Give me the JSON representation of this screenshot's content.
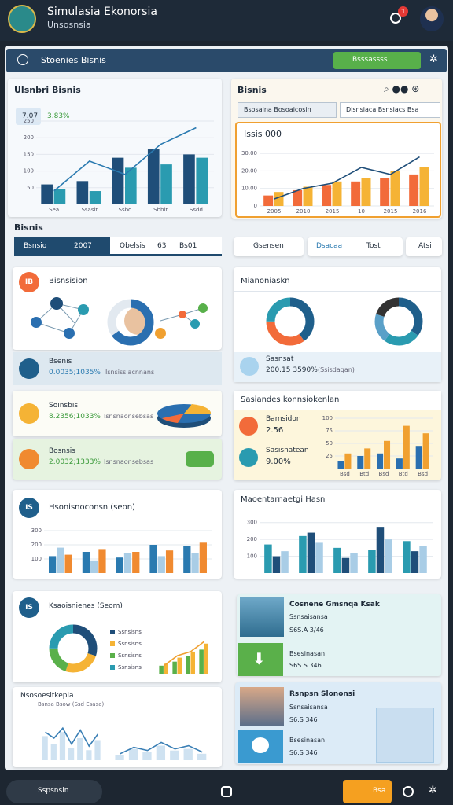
{
  "header": {
    "title": "Simulasia Ekonorsia",
    "subtitle": "Unsosnsia",
    "badge": "1"
  },
  "nav": {
    "title": "Stoenies Bisnis",
    "button": "Bsssassss"
  },
  "overview": {
    "title": "Ulsnbri Bisnis",
    "stat": "7.07",
    "stat_sub": "3.83%",
    "chart": {
      "ylim": [
        0,
        250
      ],
      "yticks": [
        50,
        100,
        150,
        200,
        250
      ],
      "categories": [
        "Sea",
        "Ssasit",
        "Ssbd",
        "Sbbit",
        "Ssdd"
      ],
      "series": [
        {
          "color": "#1f4e79",
          "values": [
            60,
            70,
            140,
            165,
            150
          ]
        },
        {
          "color": "#2a9bb0",
          "values": [
            45,
            40,
            110,
            120,
            140
          ]
        }
      ],
      "lines": [
        {
          "color": "#2a7ab0",
          "values": [
            40,
            130,
            90,
            180,
            230
          ]
        }
      ]
    }
  },
  "business": {
    "title": "Bisnis",
    "tabs": [
      "Bsosaina Bosoaicosin",
      "Dlsnsiaca Bsnsiacs Bsa"
    ],
    "card_title": "Issis 000",
    "chart": {
      "ylim": [
        0,
        35
      ],
      "yticks": [
        0,
        {
          "value": 10,
          "label": "10.00"
        },
        {
          "value": 20,
          "label": "20.00"
        },
        {
          "value": 30,
          "label": "30.00"
        }
      ],
      "categories": [
        "2005",
        "2010",
        "2015",
        "10",
        "2015",
        "2016"
      ],
      "series": [
        {
          "color": "#f26b3a",
          "values": [
            6,
            9,
            12,
            14,
            16,
            18
          ]
        },
        {
          "color": "#f5b335",
          "values": [
            8,
            11,
            14,
            16,
            20,
            22
          ]
        }
      ],
      "lines": [
        {
          "color": "#1f4e79",
          "values": [
            4,
            10,
            13,
            22,
            18,
            28
          ]
        }
      ]
    }
  },
  "section": "Bisnis",
  "tabs_left": [
    [
      "Bsnsio",
      "2007"
    ],
    [
      "Obelsis",
      "63",
      "Bs01"
    ]
  ],
  "tabs_right": [
    [
      "Gsensen"
    ],
    [
      "Dsacaa",
      "Tost"
    ],
    [
      "Atsi"
    ]
  ],
  "network": {
    "title": "Bisnsision",
    "icon": "IB",
    "label": "Bsenis",
    "value": "0.0035;1035%",
    "note": "Isnsissiacnnans",
    "ring": {
      "values": [
        65,
        35
      ],
      "colors": [
        "#2a6fb0",
        "#e2e9f0"
      ]
    }
  },
  "mix": {
    "title": "Mianoniaskn",
    "label": "Sasnsat",
    "value": "200.15 3590%",
    "note": "(Ssisdaqan)",
    "donuts": [
      {
        "values": [
          40,
          35,
          25
        ],
        "colors": [
          "#1f5f8b",
          "#f26b3a",
          "#2a9bb0"
        ]
      },
      {
        "values": [
          35,
          25,
          20,
          20
        ],
        "colors": [
          "#1f5f8b",
          "#2a9bb0",
          "#5aa0c8",
          "#333333"
        ]
      }
    ]
  },
  "items": [
    {
      "label": "Soinsbis",
      "value": "8.2356;1033%",
      "note": "Isnsnaonsebsas"
    },
    {
      "label": "Bosnsis",
      "value": "2.0032;1333%",
      "note": "Isnsnaonsebsas"
    }
  ],
  "connections": {
    "title": "Sasiandes konnsiokenlan",
    "items": [
      {
        "label": "Bamsidon",
        "value": "2.56"
      },
      {
        "label": "Sasisnatean",
        "value": "9.00%"
      }
    ],
    "chart": {
      "ylim": [
        0,
        100
      ],
      "yticks": [
        25,
        50,
        75,
        100
      ],
      "categories": [
        "Bsd",
        "Btd",
        "Bsd",
        "Btd",
        "Bsd"
      ],
      "series": [
        {
          "color": "#2a6fb0",
          "values": [
            15,
            25,
            30,
            20,
            45
          ]
        },
        {
          "color": "#f0a030",
          "values": [
            30,
            40,
            55,
            85,
            70
          ]
        }
      ]
    }
  },
  "history": {
    "title": "Hsonisnoconsn (seon)",
    "icon": "IS",
    "chart": {
      "ylim": [
        0,
        350
      ],
      "yticks": [
        100,
        200,
        300
      ],
      "series": [
        {
          "color": "#2a7ab0",
          "values": [
            120,
            150,
            110,
            200,
            190
          ]
        },
        {
          "color": "#a9cde6",
          "values": [
            180,
            90,
            140,
            120,
            140
          ]
        },
        {
          "color": "#f08a30",
          "values": [
            130,
            170,
            150,
            160,
            215
          ]
        }
      ]
    }
  },
  "market": {
    "title": "Maoentarnaetgi Hasn",
    "chart": {
      "ylim": [
        0,
        350
      ],
      "yticks": [
        100,
        200,
        300
      ],
      "series": [
        {
          "color": "#2a9bb0",
          "values": [
            170,
            220,
            150,
            140,
            190
          ]
        },
        {
          "color": "#1f4e79",
          "values": [
            100,
            240,
            90,
            270,
            130
          ]
        },
        {
          "color": "#a9cde6",
          "values": [
            130,
            180,
            120,
            200,
            160
          ]
        }
      ]
    }
  },
  "resources": {
    "title": "Ksaoisnienes (Seom)",
    "icon": "IS",
    "legend": [
      "Ssnsisns",
      "Ssnsisns",
      "Ssnsisns",
      "Ssnsisns"
    ],
    "donut": {
      "values": [
        30,
        25,
        20,
        25
      ],
      "colors": [
        "#1f4e79",
        "#f5b335",
        "#5ab04a",
        "#2a9bb0"
      ]
    },
    "chart": {
      "ylim": [
        0,
        100
      ],
      "series": [
        {
          "color": "#5ab04a",
          "values": [
            20,
            30,
            45,
            60
          ]
        },
        {
          "color": "#f5b335",
          "values": [
            25,
            40,
            55,
            75
          ]
        }
      ],
      "lines": [
        {
          "color": "#f0a030",
          "values": [
            20,
            45,
            55,
            80
          ]
        }
      ]
    }
  },
  "trends": {
    "title": "Nsosoesitkepia",
    "subtitle": "Bsnsa Bsow (Ssd Esasa)",
    "charts": [
      {
        "ylim": [
          0,
          100
        ],
        "series": [
          {
            "color": "#cfe2f1",
            "values": [
              60,
              40,
              70,
              30,
              55,
              25,
              50
            ]
          }
        ],
        "lines": [
          {
            "color": "#3a7fb5",
            "values": [
              70,
              55,
              80,
              40,
              75,
              35,
              65
            ]
          }
        ]
      },
      {
        "ylim": [
          0,
          100
        ],
        "series": [
          {
            "color": "#cfe2f1",
            "values": [
              15,
              35,
              25,
              45,
              30,
              35,
              20
            ]
          }
        ],
        "lines": [
          {
            "color": "#3a7fb5",
            "values": [
              20,
              40,
              30,
              55,
              35,
              45,
              25
            ]
          }
        ]
      }
    ]
  },
  "profile1": {
    "title": "Cosnene Gmsnqa Ksak",
    "line1": "Ssnsaisansa",
    "line2": "S6S.A 3/46",
    "line3": "Bsesinasan",
    "line4": "S6S.S 346"
  },
  "profile2": {
    "title": "Rsnpsn Slononsi",
    "line1": "Ssnsaisansa",
    "line2": "S6.S 346",
    "line3": "Bsesinasan",
    "line4": "S6.S 346"
  },
  "footer": {
    "search": "Sspsnsin",
    "button": "Bsa"
  }
}
